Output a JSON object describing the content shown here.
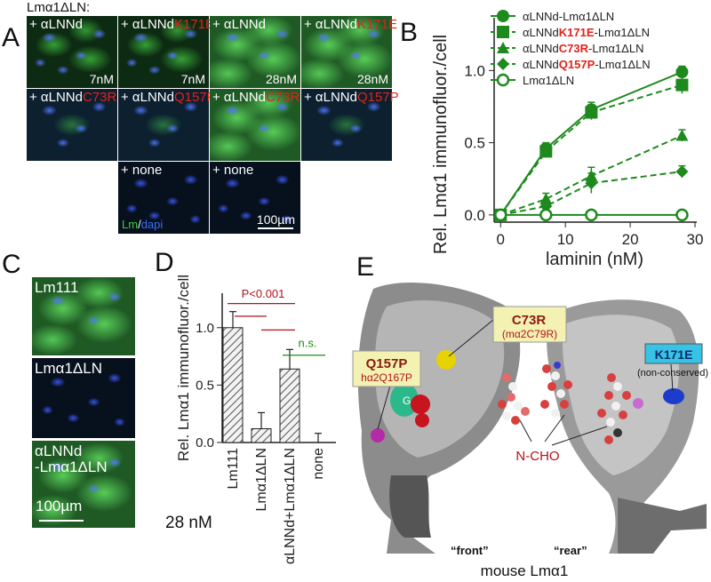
{
  "panel_letters": {
    "A": "A",
    "B": "B",
    "C": "C",
    "D": "D",
    "E": "E"
  },
  "panelA": {
    "header": "Lmα1ΔLN:",
    "tiles": [
      {
        "prefix": "+ αLNNd",
        "mut": "",
        "conc": "7nM",
        "style": "normal"
      },
      {
        "prefix": "+ αLNNd",
        "mut": "K171E",
        "conc": "7nM",
        "style": "normal"
      },
      {
        "prefix": "+ αLNNd",
        "mut": "",
        "conc": "28nM",
        "style": "bright"
      },
      {
        "prefix": "+ αLNNd",
        "mut": "K171E",
        "conc": "28nM",
        "style": "bright"
      },
      {
        "prefix": "+ αLNNd",
        "mut": "C73R",
        "conc": "",
        "style": "mid"
      },
      {
        "prefix": "+ αLNNd",
        "mut": "Q157P",
        "conc": "",
        "style": "mid"
      },
      {
        "prefix": "+ αLNNd",
        "mut": "C73R",
        "conc": "",
        "style": "bright"
      },
      {
        "prefix": "+ αLNNd",
        "mut": "Q157P",
        "conc": "",
        "style": "mid"
      },
      {
        "prefix": "+ none",
        "mut": "",
        "conc": "",
        "style": "dim"
      },
      {
        "prefix": "+ none",
        "mut": "",
        "conc": "",
        "style": "dim"
      }
    ],
    "legend_lm": "Lm",
    "legend_sep": "/",
    "legend_dapi": "dapi",
    "scalebar": "100µm"
  },
  "panelC": {
    "tiles": [
      {
        "label": "Lm111",
        "style": "normal"
      },
      {
        "label": "Lmα1ΔLN",
        "style": "dim"
      },
      {
        "label": "αLNNd",
        "label2": "-Lmα1ΔLN",
        "style": "normal"
      }
    ],
    "scalebar": "100µm"
  },
  "panelE": {
    "labels": {
      "c73r": "C73R",
      "c73r_sub": "(mα2C79R)",
      "q157p": "Q157P",
      "q157p_sub": "hα2Q167P",
      "k171e": "K171E",
      "k171e_sub": "(non-conserved)",
      "nglyc": "N-CHO",
      "front": "“front”",
      "rear": "“rear”",
      "caption": "mouse Lmα1",
      "g": "G"
    }
  },
  "chart_data": [
    {
      "id": "B",
      "type": "line",
      "xlabel": "laminin (nM)",
      "ylabel": "Rel. Lmα1 immunofluor./cell",
      "xlim": [
        -1,
        30
      ],
      "ylim": [
        -0.05,
        1.15
      ],
      "xticks": [
        0,
        10,
        20,
        30
      ],
      "yticks": [
        0.0,
        0.5,
        1.0
      ],
      "color": "#1e8a1e",
      "series": [
        {
          "name_parts": [
            "αLNNd-Lmα1ΔLN"
          ],
          "marker": "circle",
          "dash": false,
          "x": [
            0,
            7,
            14,
            28
          ],
          "y": [
            0.0,
            0.46,
            0.73,
            0.99
          ],
          "err": [
            0.02,
            0.04,
            0.05,
            0.04
          ]
        },
        {
          "name_parts": [
            "αLNNd",
            "K171E",
            "-Lmα1ΔLN"
          ],
          "marker": "square",
          "dash": true,
          "x": [
            0,
            7,
            14,
            28
          ],
          "y": [
            0.0,
            0.44,
            0.71,
            0.9
          ],
          "err": [
            0.02,
            0.04,
            0.05,
            0.06
          ]
        },
        {
          "name_parts": [
            "αLNNd",
            "C73R",
            "-Lmα1ΔLN"
          ],
          "marker": "triangle",
          "dash": true,
          "x": [
            0,
            7,
            14,
            28
          ],
          "y": [
            0.0,
            0.11,
            0.27,
            0.55
          ],
          "err": [
            0.02,
            0.04,
            0.06,
            0.04
          ]
        },
        {
          "name_parts": [
            "αLNNd",
            "Q157P",
            "-Lmα1ΔLN"
          ],
          "marker": "diamond",
          "dash": true,
          "x": [
            0,
            7,
            14,
            28
          ],
          "y": [
            0.0,
            0.06,
            0.22,
            0.3
          ],
          "err": [
            0.02,
            0.03,
            0.07,
            0.04
          ]
        },
        {
          "name_parts": [
            "Lmα1ΔLN"
          ],
          "marker": "open-circle",
          "dash": false,
          "x": [
            0,
            7,
            14,
            28
          ],
          "y": [
            0.0,
            0.0,
            0.0,
            0.0
          ],
          "err": [
            0,
            0,
            0,
            0
          ]
        }
      ]
    },
    {
      "id": "D",
      "type": "bar",
      "ylabel": "Rel. Lmα1 immunofluor./cell",
      "categories": [
        "Lm111",
        "Lmα1ΔLN",
        "αLNNd+Lmα1ΔLN",
        "none"
      ],
      "values": [
        1.0,
        0.12,
        0.64,
        0.0
      ],
      "errors": [
        0.14,
        0.14,
        0.17,
        0.08
      ],
      "ylim": [
        0,
        1.3
      ],
      "yticks": [
        0.0,
        0.5,
        1.0
      ],
      "annotations": [
        {
          "text": "P<0.001",
          "color": "#b5121b"
        },
        {
          "text": "n.s.",
          "color": "#1e8a1e"
        }
      ],
      "note": "28 nM"
    }
  ]
}
